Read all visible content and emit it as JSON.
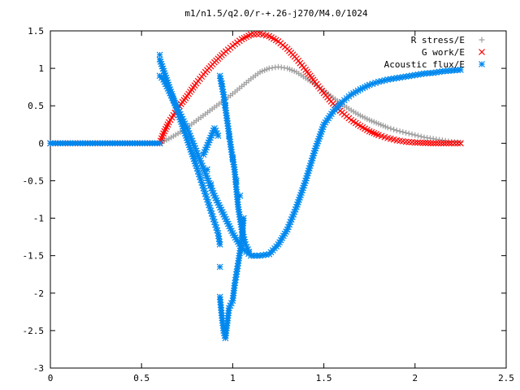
{
  "chart_data": {
    "type": "scatter",
    "title": "m1/n1.5/q2.0/r-+.26-j270/M4.0/1024",
    "xlabel": "",
    "ylabel": "",
    "xlim": [
      0,
      2.5
    ],
    "ylim": [
      -3,
      1.5
    ],
    "x_ticks": [
      "0",
      "0.5",
      "1",
      "1.5",
      "2",
      "2.5"
    ],
    "y_ticks": [
      "1.5",
      "1",
      "0.5",
      "0",
      "-0.5",
      "-1",
      "-1.5",
      "-2",
      "-2.5",
      "-3"
    ],
    "grid": false,
    "legend_position": "top-right",
    "series": [
      {
        "name": "R stress/E",
        "color": "#a0a0a0",
        "marker": "plus",
        "points": [
          [
            0.0,
            0.0
          ],
          [
            0.6,
            0.0
          ],
          [
            0.65,
            0.06
          ],
          [
            0.7,
            0.13
          ],
          [
            0.75,
            0.21
          ],
          [
            0.8,
            0.3
          ],
          [
            0.85,
            0.39
          ],
          [
            0.9,
            0.48
          ],
          [
            0.95,
            0.57
          ],
          [
            1.0,
            0.66
          ],
          [
            1.05,
            0.76
          ],
          [
            1.1,
            0.86
          ],
          [
            1.15,
            0.95
          ],
          [
            1.2,
            1.0
          ],
          [
            1.25,
            1.02
          ],
          [
            1.3,
            1.0
          ],
          [
            1.35,
            0.95
          ],
          [
            1.4,
            0.87
          ],
          [
            1.45,
            0.79
          ],
          [
            1.5,
            0.7
          ],
          [
            1.55,
            0.61
          ],
          [
            1.6,
            0.52
          ],
          [
            1.65,
            0.44
          ],
          [
            1.7,
            0.37
          ],
          [
            1.75,
            0.31
          ],
          [
            1.8,
            0.26
          ],
          [
            1.85,
            0.21
          ],
          [
            1.9,
            0.17
          ],
          [
            1.95,
            0.14
          ],
          [
            2.0,
            0.11
          ],
          [
            2.05,
            0.08
          ],
          [
            2.1,
            0.06
          ],
          [
            2.15,
            0.04
          ],
          [
            2.2,
            0.02
          ],
          [
            2.25,
            0.01
          ]
        ]
      },
      {
        "name": "G work/E",
        "color": "#ff0000",
        "marker": "cross",
        "points": [
          [
            0.0,
            0.0
          ],
          [
            0.6,
            0.0
          ],
          [
            0.62,
            0.13
          ],
          [
            0.65,
            0.28
          ],
          [
            0.7,
            0.47
          ],
          [
            0.75,
            0.63
          ],
          [
            0.8,
            0.8
          ],
          [
            0.85,
            0.95
          ],
          [
            0.9,
            1.08
          ],
          [
            0.95,
            1.2
          ],
          [
            1.0,
            1.3
          ],
          [
            1.05,
            1.39
          ],
          [
            1.1,
            1.45
          ],
          [
            1.15,
            1.46
          ],
          [
            1.2,
            1.43
          ],
          [
            1.25,
            1.36
          ],
          [
            1.3,
            1.26
          ],
          [
            1.35,
            1.13
          ],
          [
            1.4,
            0.98
          ],
          [
            1.45,
            0.82
          ],
          [
            1.5,
            0.67
          ],
          [
            1.55,
            0.53
          ],
          [
            1.6,
            0.41
          ],
          [
            1.65,
            0.31
          ],
          [
            1.7,
            0.23
          ],
          [
            1.75,
            0.16
          ],
          [
            1.8,
            0.11
          ],
          [
            1.85,
            0.07
          ],
          [
            1.9,
            0.04
          ],
          [
            1.95,
            0.02
          ],
          [
            2.0,
            0.01
          ],
          [
            2.1,
            0.0
          ],
          [
            2.2,
            0.0
          ],
          [
            2.25,
            0.0
          ]
        ]
      },
      {
        "name": "Acoustic flux/E",
        "color": "#0088ee",
        "marker": "star",
        "points": [
          [
            0.0,
            0.0
          ],
          [
            0.6,
            0.0
          ],
          [
            0.6,
            0.9
          ],
          [
            0.62,
            0.85
          ],
          [
            0.65,
            0.7
          ],
          [
            0.7,
            0.45
          ],
          [
            0.75,
            0.2
          ],
          [
            0.8,
            -0.1
          ],
          [
            0.85,
            -0.4
          ],
          [
            0.9,
            -0.7
          ],
          [
            0.95,
            -0.95
          ],
          [
            1.0,
            -1.2
          ],
          [
            1.05,
            -1.4
          ],
          [
            1.1,
            -1.5
          ],
          [
            1.15,
            -1.5
          ],
          [
            1.2,
            -1.48
          ],
          [
            1.25,
            -1.35
          ],
          [
            1.3,
            -1.15
          ],
          [
            1.35,
            -0.85
          ],
          [
            1.4,
            -0.5
          ],
          [
            1.45,
            -0.1
          ],
          [
            1.5,
            0.25
          ],
          [
            1.55,
            0.42
          ],
          [
            1.6,
            0.55
          ],
          [
            1.65,
            0.65
          ],
          [
            1.7,
            0.72
          ],
          [
            1.75,
            0.78
          ],
          [
            1.8,
            0.82
          ],
          [
            1.85,
            0.85
          ],
          [
            1.9,
            0.87
          ],
          [
            1.95,
            0.89
          ],
          [
            2.0,
            0.91
          ],
          [
            2.05,
            0.93
          ],
          [
            2.1,
            0.94
          ],
          [
            2.15,
            0.96
          ],
          [
            2.2,
            0.97
          ],
          [
            2.25,
            0.98
          ],
          [
            0.6,
            1.18
          ],
          [
            0.6,
            1.12
          ],
          [
            0.8,
            -0.3
          ],
          [
            0.82,
            -0.45
          ],
          [
            0.84,
            -0.6
          ],
          [
            0.86,
            -0.75
          ],
          [
            0.88,
            -0.9
          ],
          [
            0.9,
            -1.05
          ],
          [
            0.92,
            -1.2
          ],
          [
            0.93,
            -1.35
          ],
          [
            0.93,
            -1.65
          ],
          [
            0.93,
            -2.05
          ],
          [
            0.94,
            -2.3
          ],
          [
            0.95,
            -2.5
          ],
          [
            0.96,
            -2.6
          ],
          [
            0.97,
            -2.4
          ],
          [
            0.98,
            -2.2
          ],
          [
            1.0,
            -2.1
          ],
          [
            1.01,
            -1.9
          ],
          [
            1.02,
            -1.75
          ],
          [
            1.03,
            -1.6
          ],
          [
            1.05,
            -1.3
          ],
          [
            1.06,
            -1.0
          ],
          [
            1.04,
            -0.7
          ],
          [
            1.02,
            -0.5
          ],
          [
            1.0,
            -0.2
          ],
          [
            0.98,
            0.1
          ],
          [
            0.96,
            0.5
          ],
          [
            0.94,
            0.8
          ],
          [
            0.93,
            0.9
          ],
          [
            0.95,
            0.65
          ],
          [
            0.97,
            0.3
          ],
          [
            0.99,
            -0.05
          ],
          [
            1.01,
            -0.35
          ],
          [
            1.03,
            -0.85
          ],
          [
            1.05,
            -1.15
          ],
          [
            1.07,
            -1.35
          ],
          [
            1.09,
            -1.45
          ],
          [
            0.88,
            -0.55
          ],
          [
            0.86,
            -0.35
          ],
          [
            0.84,
            -0.15
          ],
          [
            0.9,
            0.2
          ],
          [
            0.92,
            0.1
          ]
        ]
      }
    ]
  }
}
